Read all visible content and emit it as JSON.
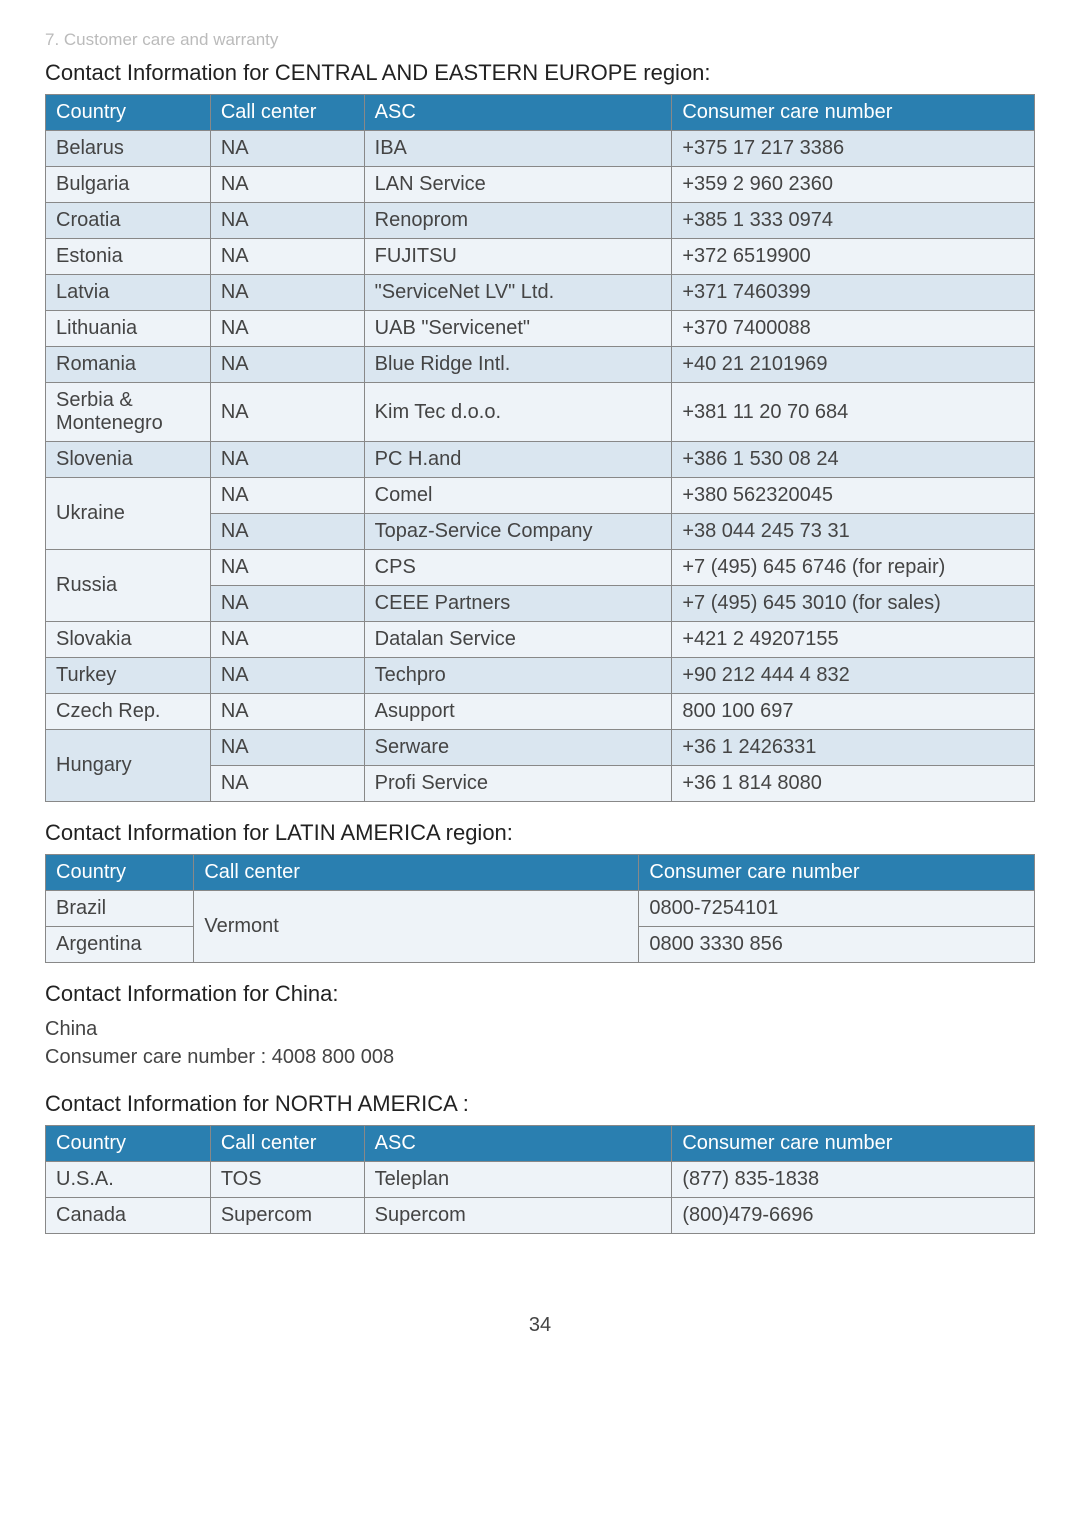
{
  "breadcrumb": "7. Customer care and warranty",
  "page_number": "34",
  "header_bg": "#2a7fb0",
  "header_fg": "#ffffff",
  "row_odd_bg": "#dae6f0",
  "row_even_bg": "#eef3f8",
  "border_color": "#888888",
  "cee": {
    "title": "Contact Information for CENTRAL AND EASTERN EUROPE region:",
    "columns": [
      "Country",
      "Call center",
      "ASC",
      "Consumer care number"
    ],
    "rows": [
      {
        "country": "Belarus",
        "span": 1,
        "entries": [
          {
            "cc": "NA",
            "asc": "IBA",
            "phone": "+375 17 217 3386"
          }
        ]
      },
      {
        "country": "Bulgaria",
        "span": 1,
        "entries": [
          {
            "cc": "NA",
            "asc": "LAN Service",
            "phone": "+359 2 960 2360"
          }
        ]
      },
      {
        "country": "Croatia",
        "span": 1,
        "entries": [
          {
            "cc": "NA",
            "asc": "Renoprom",
            "phone": "+385 1 333 0974"
          }
        ]
      },
      {
        "country": "Estonia",
        "span": 1,
        "entries": [
          {
            "cc": "NA",
            "asc": "FUJITSU",
            "phone": "+372 6519900"
          }
        ]
      },
      {
        "country": "Latvia",
        "span": 1,
        "entries": [
          {
            "cc": "NA",
            "asc": "\"ServiceNet LV\" Ltd.",
            "phone": "+371 7460399"
          }
        ]
      },
      {
        "country": "Lithuania",
        "span": 1,
        "entries": [
          {
            "cc": "NA",
            "asc": "UAB \"Servicenet\"",
            "phone": "+370 7400088"
          }
        ]
      },
      {
        "country": "Romania",
        "span": 1,
        "entries": [
          {
            "cc": "NA",
            "asc": "Blue Ridge Intl.",
            "phone": "+40 21 2101969"
          }
        ]
      },
      {
        "country": "Serbia & Montenegro",
        "span": 1,
        "entries": [
          {
            "cc": "NA",
            "asc": "Kim Tec d.o.o.",
            "phone": "+381 11 20 70 684"
          }
        ]
      },
      {
        "country": "Slovenia",
        "span": 1,
        "entries": [
          {
            "cc": "NA",
            "asc": "PC H.and",
            "phone": "+386 1 530 08 24"
          }
        ]
      },
      {
        "country": "Ukraine",
        "span": 2,
        "entries": [
          {
            "cc": "NA",
            "asc": "Comel",
            "phone": "+380 562320045"
          },
          {
            "cc": "NA",
            "asc": "Topaz-Service Company",
            "phone": "+38 044 245 73 31"
          }
        ]
      },
      {
        "country": "Russia",
        "span": 2,
        "entries": [
          {
            "cc": "NA",
            "asc": "CPS",
            "phone": "+7 (495) 645 6746 (for repair)"
          },
          {
            "cc": "NA",
            "asc": "CEEE Partners",
            "phone": "+7 (495) 645 3010 (for sales)"
          }
        ]
      },
      {
        "country": "Slovakia",
        "span": 1,
        "entries": [
          {
            "cc": "NA",
            "asc": "Datalan Service",
            "phone": "+421 2 49207155"
          }
        ]
      },
      {
        "country": "Turkey",
        "span": 1,
        "entries": [
          {
            "cc": "NA",
            "asc": "Techpro",
            "phone": "+90 212 444 4 832"
          }
        ]
      },
      {
        "country": "Czech Rep.",
        "span": 1,
        "entries": [
          {
            "cc": "NA",
            "asc": "Asupport",
            "phone": "800 100 697"
          }
        ]
      },
      {
        "country": "Hungary",
        "span": 2,
        "entries": [
          {
            "cc": "NA",
            "asc": "Serware",
            "phone": "+36 1 2426331"
          },
          {
            "cc": "NA",
            "asc": "Profi Service",
            "phone": "+36 1 814 8080"
          }
        ]
      }
    ]
  },
  "latam": {
    "title": "Contact Information for LATIN AMERICA region:",
    "columns": [
      "Country",
      "Call center",
      "Consumer care number"
    ],
    "rows": [
      {
        "country": "Brazil",
        "phone": "0800-7254101"
      },
      {
        "country": "Argentina",
        "phone": "0800 3330 856"
      }
    ],
    "shared_callcenter": "Vermont"
  },
  "china": {
    "title": "Contact Information for China:",
    "line1": "China",
    "line2": "Consumer care number : 4008 800 008"
  },
  "na": {
    "title": "Contact Information for NORTH AMERICA :",
    "columns": [
      "Country",
      "Call center",
      "ASC",
      "Consumer care number"
    ],
    "rows": [
      {
        "country": "U.S.A.",
        "cc": "TOS",
        "asc": "Teleplan",
        "phone": "(877) 835-1838"
      },
      {
        "country": "Canada",
        "cc": "Supercom",
        "asc": "Supercom",
        "phone": "(800)479-6696"
      }
    ]
  }
}
